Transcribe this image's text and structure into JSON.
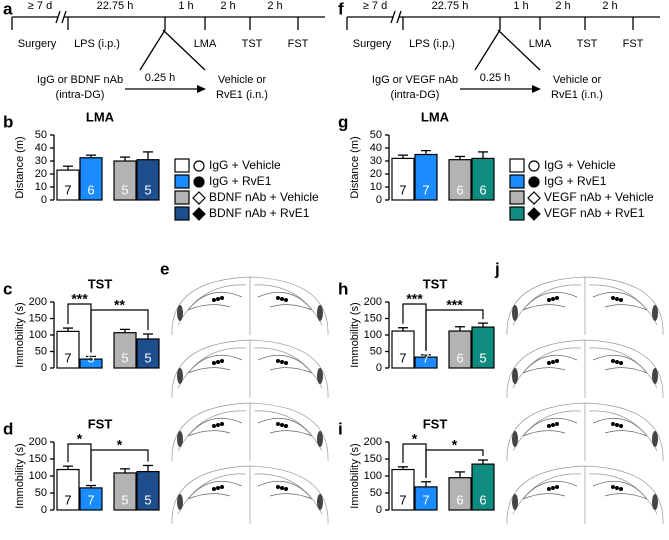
{
  "timelines": [
    {
      "panel": "a",
      "above": [
        "≥ 7 d",
        "22.75 h",
        "1 h",
        "2 h",
        "2 h"
      ],
      "below": [
        "Surgery",
        "LPS (i.p.)",
        "LMA",
        "TST",
        "FST"
      ],
      "left": [
        "IgG or BDNF nAb",
        "(intra-DG)"
      ],
      "arrow": "0.25 h",
      "right": [
        "Vehicle or",
        "RvE1 (i.n.)"
      ]
    },
    {
      "panel": "f",
      "above": [
        "≥ 7 d",
        "22.75 h",
        "1 h",
        "2 h",
        "2 h"
      ],
      "below": [
        "Surgery",
        "LPS (i.p.)",
        "LMA",
        "TST",
        "FST"
      ],
      "left": [
        "IgG or VEGF nAb",
        "(intra-DG)"
      ],
      "arrow": "0.25 h",
      "right": [
        "Vehicle or",
        "RvE1 (i.n.)"
      ]
    }
  ],
  "atlas_panels": [
    "e",
    "j"
  ],
  "chart_data": [
    {
      "type": "bar",
      "panel": "b",
      "title": "LMA",
      "y_label": "Distance (m)",
      "values": [
        23,
        32.5,
        30,
        31
      ],
      "errors": [
        3,
        2,
        3,
        6
      ],
      "n": [
        7,
        6,
        5,
        5
      ],
      "colors": [
        "#ffffff",
        "#1a8cff",
        "#b3b3b3",
        "#1f4e8c"
      ],
      "ylim": [
        0,
        50
      ],
      "yticks": [
        0,
        10,
        20,
        30,
        40,
        50
      ],
      "legend": [
        "IgG + Vehicle",
        "IgG + RvE1",
        "BDNF nAb + Vehicle",
        "BDNF nAb + RvE1"
      ]
    },
    {
      "type": "bar",
      "panel": "c",
      "title": "TST",
      "y_label": "Immobility (s)",
      "values": [
        111,
        27,
        107,
        88
      ],
      "errors": [
        10,
        8,
        10,
        15
      ],
      "n": [
        7,
        5,
        5,
        5
      ],
      "colors": [
        "#ffffff",
        "#1a8cff",
        "#b3b3b3",
        "#1f4e8c"
      ],
      "ylim": [
        0,
        200
      ],
      "yticks": [
        0,
        50,
        100,
        150,
        200
      ],
      "significance": [
        "***",
        "**"
      ]
    },
    {
      "type": "bar",
      "panel": "d",
      "title": "FST",
      "y_label": "Immobility (s)",
      "values": [
        119,
        65,
        109,
        113
      ],
      "errors": [
        10,
        7,
        12,
        18
      ],
      "n": [
        7,
        7,
        5,
        5
      ],
      "colors": [
        "#ffffff",
        "#1a8cff",
        "#b3b3b3",
        "#1f4e8c"
      ],
      "ylim": [
        0,
        200
      ],
      "yticks": [
        0,
        50,
        100,
        150,
        200
      ],
      "significance": [
        "*",
        "*"
      ]
    },
    {
      "type": "bar",
      "panel": "g",
      "title": "LMA",
      "y_label": "Distance (m)",
      "values": [
        32,
        35,
        31,
        32
      ],
      "errors": [
        2.5,
        3,
        2.5,
        5
      ],
      "n": [
        7,
        7,
        6,
        6
      ],
      "colors": [
        "#ffffff",
        "#1a8cff",
        "#b3b3b3",
        "#0f8c7f"
      ],
      "ylim": [
        0,
        50
      ],
      "yticks": [
        0,
        10,
        20,
        30,
        40,
        50
      ],
      "legend": [
        "IgG + Vehicle",
        "IgG + RvE1",
        "VEGF nAb + Vehicle",
        "VEGF nAb + RvE1"
      ]
    },
    {
      "type": "bar",
      "panel": "h",
      "title": "TST",
      "y_label": "Immobility (s)",
      "values": [
        112,
        33,
        112,
        124
      ],
      "errors": [
        10,
        7,
        13,
        12
      ],
      "n": [
        7,
        7,
        6,
        5
      ],
      "colors": [
        "#ffffff",
        "#1a8cff",
        "#b3b3b3",
        "#0f8c7f"
      ],
      "ylim": [
        0,
        200
      ],
      "yticks": [
        0,
        50,
        100,
        150,
        200
      ],
      "significance": [
        "***",
        "***"
      ]
    },
    {
      "type": "bar",
      "panel": "i",
      "title": "FST",
      "y_label": "Immobility (s)",
      "values": [
        119,
        68,
        95,
        135
      ],
      "errors": [
        8,
        15,
        17,
        12
      ],
      "n": [
        7,
        7,
        6,
        6
      ],
      "colors": [
        "#ffffff",
        "#1a8cff",
        "#b3b3b3",
        "#0f8c7f"
      ],
      "ylim": [
        0,
        200
      ],
      "yticks": [
        0,
        50,
        100,
        150,
        200
      ],
      "significance": [
        "*",
        "*"
      ]
    }
  ]
}
